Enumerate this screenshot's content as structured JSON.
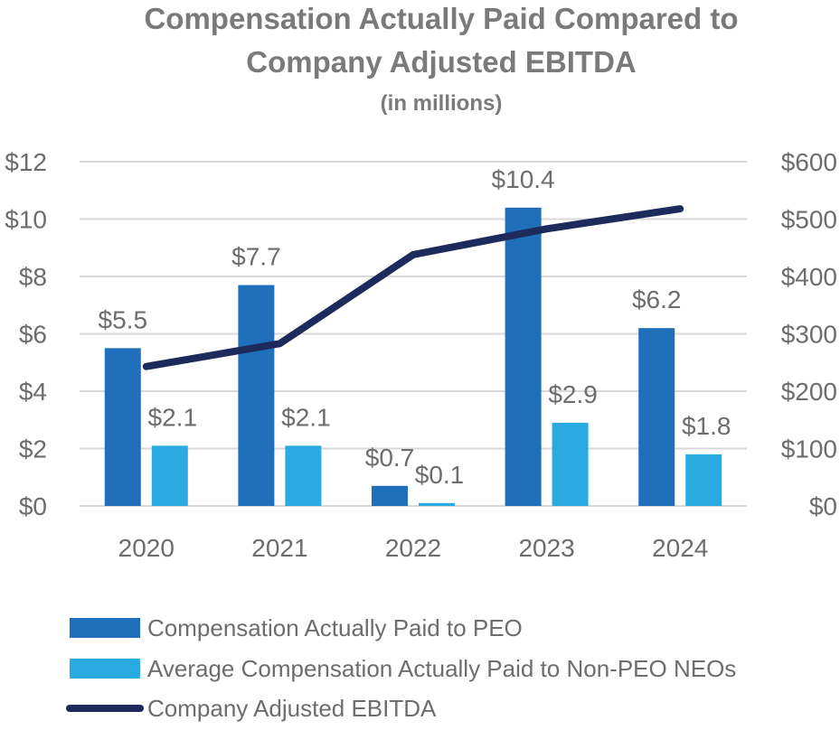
{
  "chart_data": {
    "type": "bar",
    "title_line1": "Compensation Actually Paid Compared to",
    "title_line2": "Company Adjusted EBITDA",
    "subtitle": "(in millions)",
    "categories": [
      "2020",
      "2021",
      "2022",
      "2023",
      "2024"
    ],
    "y_left": {
      "ylim": [
        0,
        12
      ],
      "ticks": [
        0,
        2,
        4,
        6,
        8,
        10,
        12
      ],
      "tick_labels": [
        "$0",
        "$2",
        "$4",
        "$6",
        "$8",
        "$10",
        "$12"
      ]
    },
    "y_right": {
      "ylim": [
        0,
        600
      ],
      "ticks": [
        0,
        100,
        200,
        300,
        400,
        500,
        600
      ],
      "tick_labels": [
        "$0",
        "$100",
        "$200",
        "$300",
        "$400",
        "$500",
        "$600"
      ]
    },
    "series": [
      {
        "name": "Compensation Actually Paid to PEO",
        "kind": "bar",
        "axis": "left",
        "color": "#1f6fba",
        "values": [
          5.5,
          7.7,
          0.7,
          10.4,
          6.2
        ],
        "labels": [
          "$5.5",
          "$7.7",
          "$0.7",
          "$10.4",
          "$6.2"
        ]
      },
      {
        "name": "Average Compensation Actually Paid to Non-PEO NEOs",
        "kind": "bar",
        "axis": "left",
        "color": "#29abe2",
        "values": [
          2.1,
          2.1,
          0.1,
          2.9,
          1.8
        ],
        "labels": [
          "$2.1",
          "$2.1",
          "$0.1",
          "$2.9",
          "$1.8"
        ]
      },
      {
        "name": "Company Adjusted EBITDA",
        "kind": "line",
        "axis": "right",
        "color": "#1c2a5c",
        "values": [
          243,
          283,
          438,
          483,
          518
        ]
      }
    ],
    "grid": true,
    "legend_position": "bottom-left"
  }
}
